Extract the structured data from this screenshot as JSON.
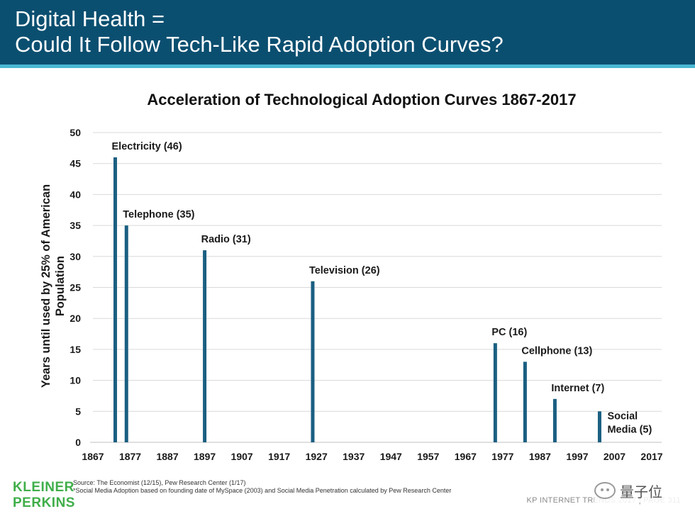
{
  "header": {
    "title_line1": "Digital Health =",
    "title_line2": "Could It Follow Tech-Like Rapid Adoption Curves?"
  },
  "chart_data": {
    "type": "bar",
    "title": "Acceleration of Technological Adoption Curves 1867-2017",
    "ylabel_lines": [
      "Years until used by 25% of American",
      "Population"
    ],
    "xlabel": "",
    "xlim": [
      1867,
      2017
    ],
    "ylim": [
      0,
      50
    ],
    "xticks": [
      1867,
      1877,
      1887,
      1897,
      1907,
      1917,
      1927,
      1937,
      1947,
      1957,
      1967,
      1977,
      1987,
      1997,
      2007,
      2017
    ],
    "yticks": [
      0,
      5,
      10,
      15,
      20,
      25,
      30,
      35,
      40,
      45,
      50
    ],
    "grid": "horizontal",
    "bar_color": "#1a5f82",
    "points": [
      {
        "x": 1873,
        "value": 46,
        "label_lines": [
          "Electricity (46)"
        ]
      },
      {
        "x": 1876,
        "value": 35,
        "label_lines": [
          "Telephone (35)"
        ]
      },
      {
        "x": 1897,
        "value": 31,
        "label_lines": [
          "Radio (31)"
        ]
      },
      {
        "x": 1926,
        "value": 26,
        "label_lines": [
          "Television (26)"
        ]
      },
      {
        "x": 1975,
        "value": 16,
        "label_lines": [
          "PC (16)"
        ]
      },
      {
        "x": 1983,
        "value": 13,
        "label_lines": [
          "Cellphone (13)"
        ]
      },
      {
        "x": 1991,
        "value": 7,
        "label_lines": [
          "Internet (7)"
        ]
      },
      {
        "x": 2003,
        "value": 5,
        "label_lines": [
          "Social",
          "Media (5)"
        ]
      }
    ]
  },
  "sources": {
    "line1": "Source: The Economist (12/15), Pew Research Center (1/17)",
    "line2": "*Social Media Adoption based on founding date of MySpace (2003) and Social Media Penetration calculated by Pew Research Center"
  },
  "logo": {
    "line1": "KLEINER",
    "line2": "PERKINS"
  },
  "footer": {
    "text": "KP INTERNET TRENDS 2017  |  PAGE 311"
  },
  "watermark": {
    "text": "量子位"
  }
}
